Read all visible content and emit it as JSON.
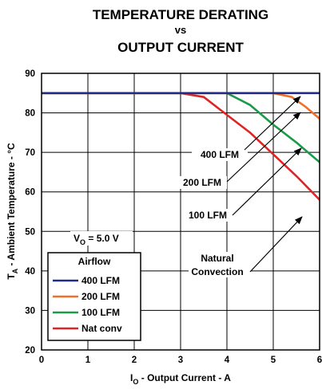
{
  "chart_data": {
    "type": "line",
    "title_lines": [
      "TEMPERATURE DERATING",
      "vs",
      "OUTPUT CURRENT"
    ],
    "xlabel": {
      "main": "I",
      "sub": "O",
      "rest": " - Output Current - A"
    },
    "ylabel": {
      "main": "T",
      "sub": "A",
      "rest": " - Ambient Temperature - °C"
    },
    "xlim": [
      0,
      6
    ],
    "ylim": [
      20,
      90
    ],
    "x_ticks": [
      "0",
      "1",
      "2",
      "3",
      "4",
      "5",
      "6"
    ],
    "y_ticks": [
      "20",
      "30",
      "40",
      "50",
      "60",
      "70",
      "80",
      "90"
    ],
    "grid": true,
    "condition": {
      "main": "V",
      "sub": "O",
      "rest": " = 5.0 V"
    },
    "legend": {
      "title": "Airflow",
      "position": "bottom-left"
    },
    "series": [
      {
        "name": "400 LFM",
        "color": "#1f2a8c",
        "x": [
          0,
          6
        ],
        "y": [
          85,
          85
        ]
      },
      {
        "name": "200 LFM",
        "color": "#f0702a",
        "x": [
          0,
          5.0,
          5.4,
          5.7,
          6.0
        ],
        "y": [
          85,
          85,
          84,
          81.5,
          78.5
        ]
      },
      {
        "name": "100 LFM",
        "color": "#1a9a4a",
        "x": [
          0,
          4.0,
          4.5,
          5.0,
          5.5,
          6.0
        ],
        "y": [
          85,
          85,
          82,
          77,
          72.5,
          67.5
        ]
      },
      {
        "name": "Nat conv",
        "color": "#e02424",
        "x": [
          0,
          3.0,
          3.5,
          4.0,
          4.5,
          5.0,
          5.5,
          6.0
        ],
        "y": [
          85,
          85,
          84,
          79.5,
          75,
          69.5,
          64,
          58
        ]
      }
    ],
    "annotations": [
      {
        "lines": [
          "400 LFM"
        ]
      },
      {
        "lines": [
          "200 LFM"
        ]
      },
      {
        "lines": [
          "100 LFM"
        ]
      },
      {
        "lines": [
          "Natural",
          "Convection"
        ]
      }
    ]
  }
}
